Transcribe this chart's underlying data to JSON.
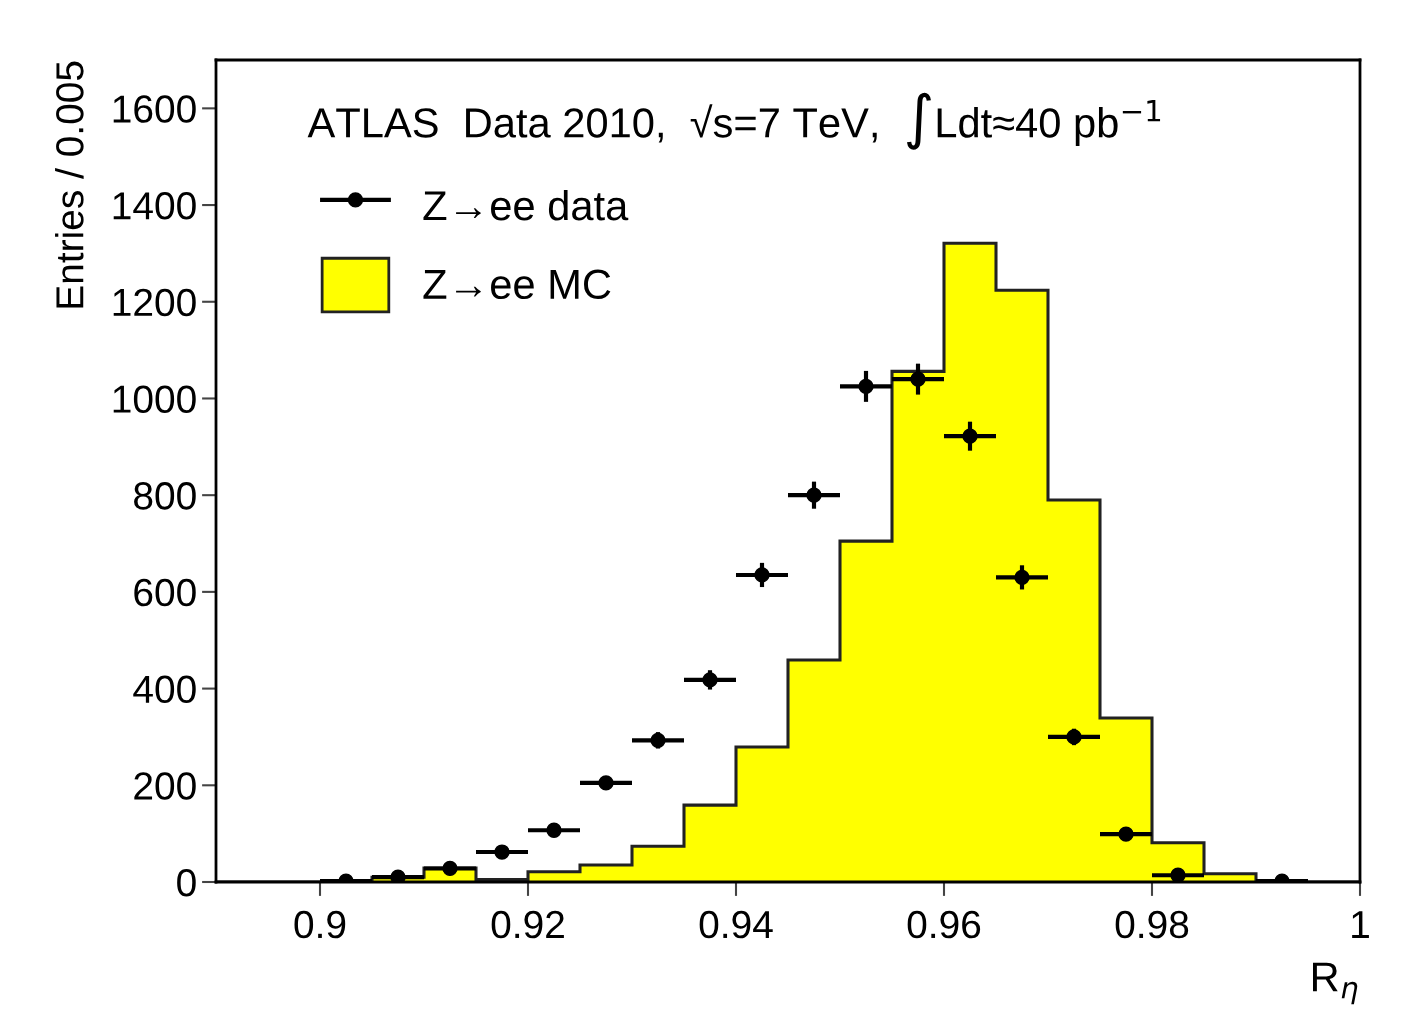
{
  "chart_data": {
    "type": "histogram",
    "title": "ATLAS  Data 2010,  √s=7 TeV,  ∫Ldt≈40 pb$^{−1}$",
    "xlabel": "R$_{η}$",
    "ylabel": "Entries / 0.005",
    "bins": [
      0.89,
      0.895,
      0.9,
      0.905,
      0.91,
      0.915,
      0.92,
      0.925,
      0.93,
      0.935,
      0.94,
      0.945,
      0.95,
      0.955,
      0.96,
      0.965,
      0.97,
      0.975,
      0.98,
      0.985,
      0.99,
      0.995,
      1.0
    ],
    "series": [
      {
        "name": "Z→ee MC",
        "color": "#ffff00",
        "values": [
          0,
          0,
          0,
          10,
          29,
          5,
          21,
          35,
          74,
          159,
          279,
          459,
          705,
          1056,
          1321,
          1224,
          790,
          339,
          81,
          17,
          0,
          0
        ]
      },
      {
        "name": "Z→ee data",
        "type": "scatter",
        "color": "#000000",
        "x": [
          0.9025,
          0.9075,
          0.9125,
          0.9175,
          0.9225,
          0.9275,
          0.9325,
          0.9375,
          0.9425,
          0.9475,
          0.9525,
          0.9575,
          0.9625,
          0.9675,
          0.9725,
          0.9775,
          0.9825,
          0.9875,
          0.9925
        ],
        "values": [
          2,
          10,
          28,
          62,
          107,
          205,
          293,
          418,
          635,
          800,
          1025,
          1040,
          922,
          630,
          300,
          99,
          14,
          null,
          2
        ],
        "errors": [
          null,
          null,
          null,
          null,
          10,
          14,
          17,
          20,
          25,
          28,
          32,
          32,
          30,
          25,
          17,
          10,
          null,
          null,
          null
        ],
        "xerrors": [
          0.0025,
          0.0025,
          0.0025,
          0.0025,
          0.0025,
          0.0025,
          0.0025,
          0.0025,
          0.0025,
          0.0025,
          0.0025,
          0.0025,
          0.0025,
          0.0025,
          0.0025,
          0.0025,
          0.0025,
          null,
          0.0025
        ]
      }
    ],
    "xlim": [
      0.89,
      1.0
    ],
    "ylim": [
      0,
      1700
    ],
    "xticks": [
      0.9,
      0.92,
      0.94,
      0.96,
      0.98,
      1
    ],
    "yticks": [
      0,
      200,
      400,
      600,
      800,
      1000,
      1200,
      1400,
      1600
    ],
    "legend": "top left",
    "marker": "circle"
  }
}
